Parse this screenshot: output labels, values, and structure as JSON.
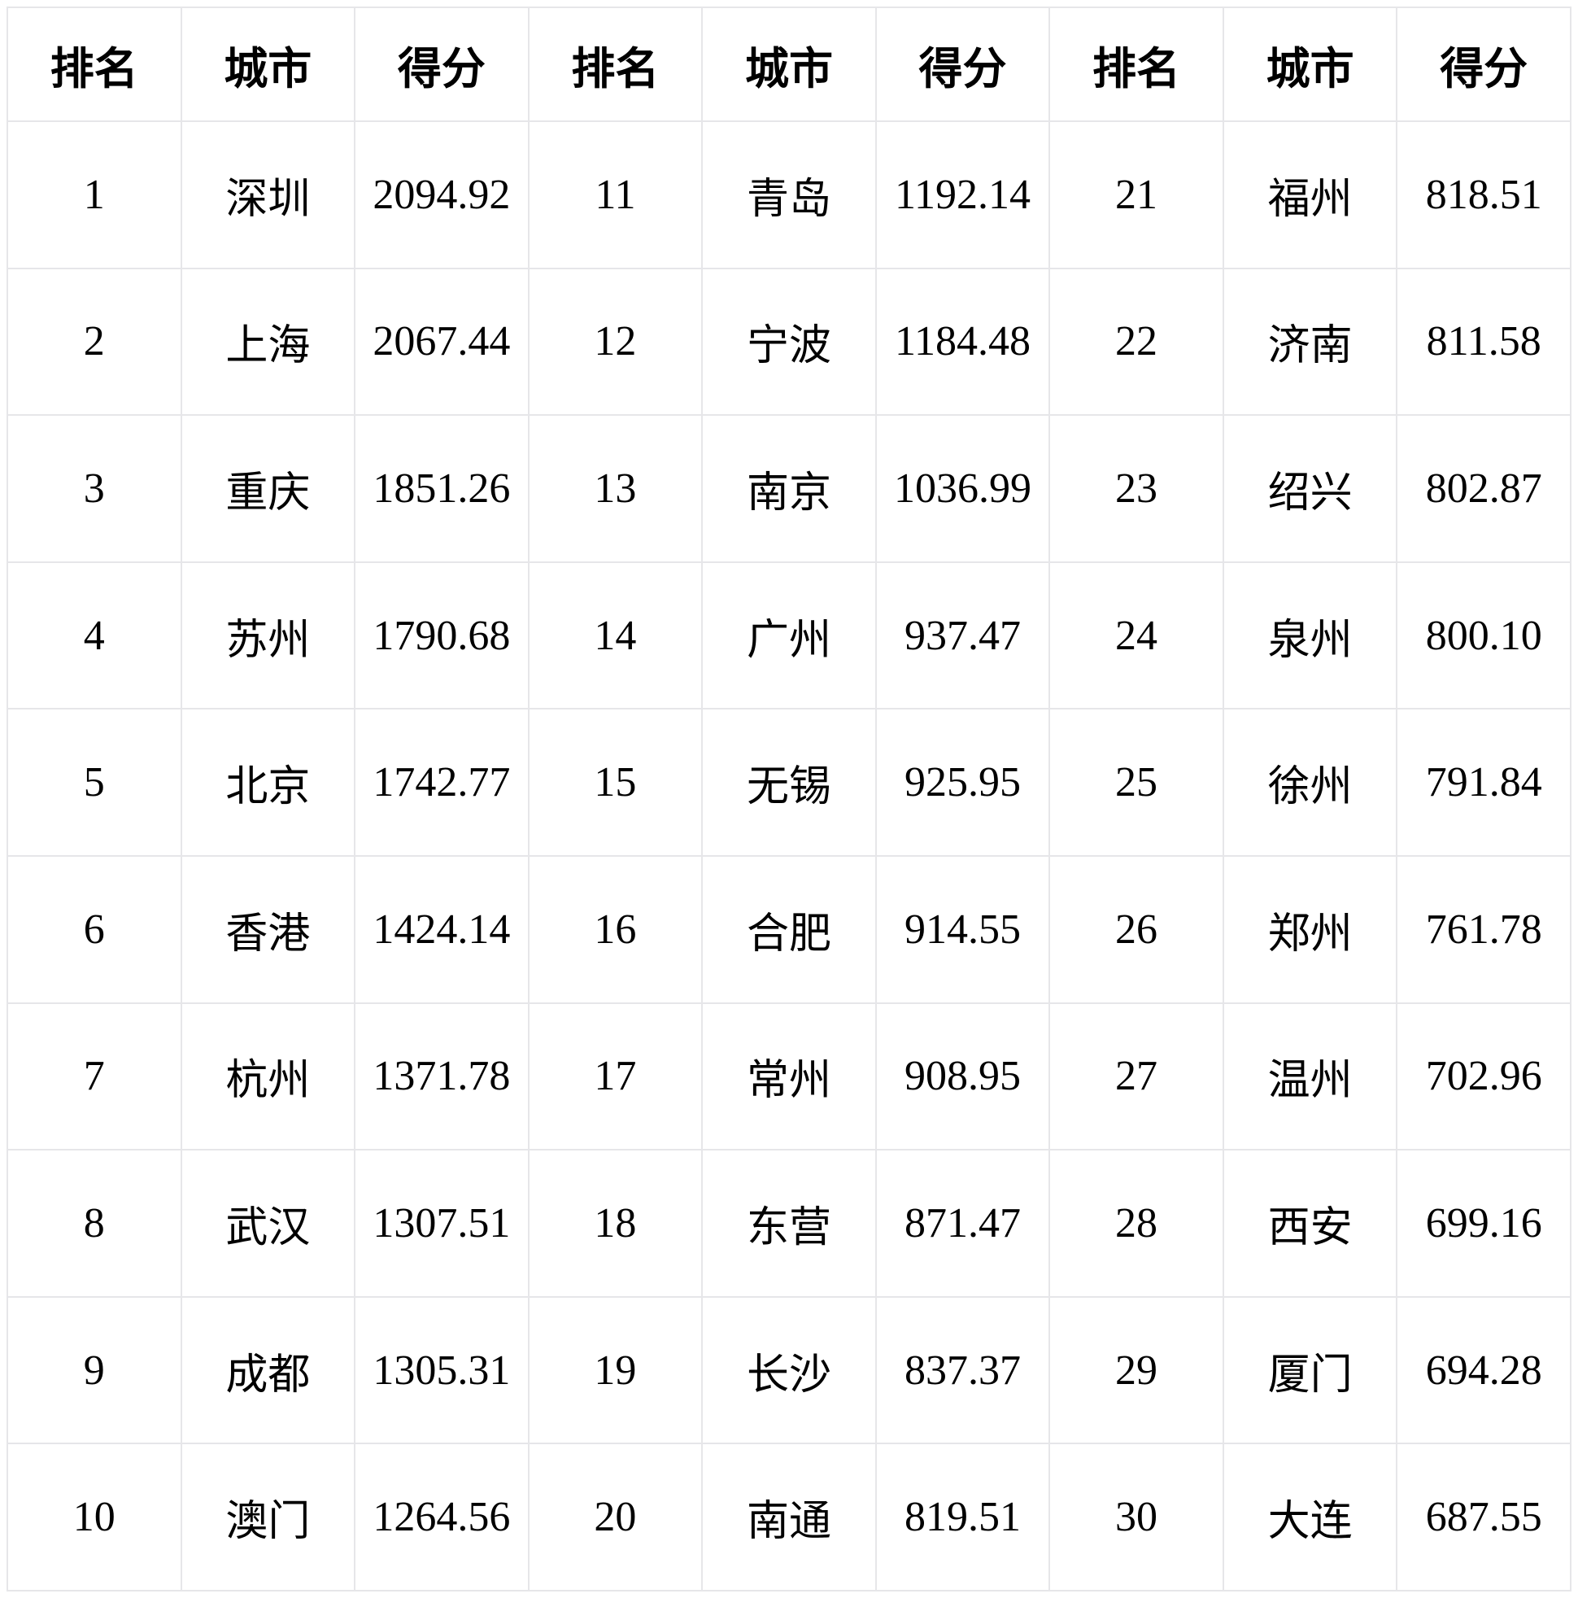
{
  "layout": {
    "column_groups": 3,
    "rows_per_group": 10,
    "grid_line_color": "#e6e6e9",
    "background_color": "#ffffff",
    "text_color": "#000000"
  },
  "chart_data": {
    "type": "table",
    "columns": [
      "排名",
      "城市",
      "得分"
    ],
    "rows": [
      [
        "1",
        "深圳",
        "2094.92"
      ],
      [
        "2",
        "上海",
        "2067.44"
      ],
      [
        "3",
        "重庆",
        "1851.26"
      ],
      [
        "4",
        "苏州",
        "1790.68"
      ],
      [
        "5",
        "北京",
        "1742.77"
      ],
      [
        "6",
        "香港",
        "1424.14"
      ],
      [
        "7",
        "杭州",
        "1371.78"
      ],
      [
        "8",
        "武汉",
        "1307.51"
      ],
      [
        "9",
        "成都",
        "1305.31"
      ],
      [
        "10",
        "澳门",
        "1264.56"
      ],
      [
        "11",
        "青岛",
        "1192.14"
      ],
      [
        "12",
        "宁波",
        "1184.48"
      ],
      [
        "13",
        "南京",
        "1036.99"
      ],
      [
        "14",
        "广州",
        "937.47"
      ],
      [
        "15",
        "无锡",
        "925.95"
      ],
      [
        "16",
        "合肥",
        "914.55"
      ],
      [
        "17",
        "常州",
        "908.95"
      ],
      [
        "18",
        "东营",
        "871.47"
      ],
      [
        "19",
        "长沙",
        "837.37"
      ],
      [
        "20",
        "南通",
        "819.51"
      ],
      [
        "21",
        "福州",
        "818.51"
      ],
      [
        "22",
        "济南",
        "811.58"
      ],
      [
        "23",
        "绍兴",
        "802.87"
      ],
      [
        "24",
        "泉州",
        "800.10"
      ],
      [
        "25",
        "徐州",
        "791.84"
      ],
      [
        "26",
        "郑州",
        "761.78"
      ],
      [
        "27",
        "温州",
        "702.96"
      ],
      [
        "28",
        "西安",
        "699.16"
      ],
      [
        "29",
        "厦门",
        "694.28"
      ],
      [
        "30",
        "大连",
        "687.55"
      ]
    ]
  }
}
